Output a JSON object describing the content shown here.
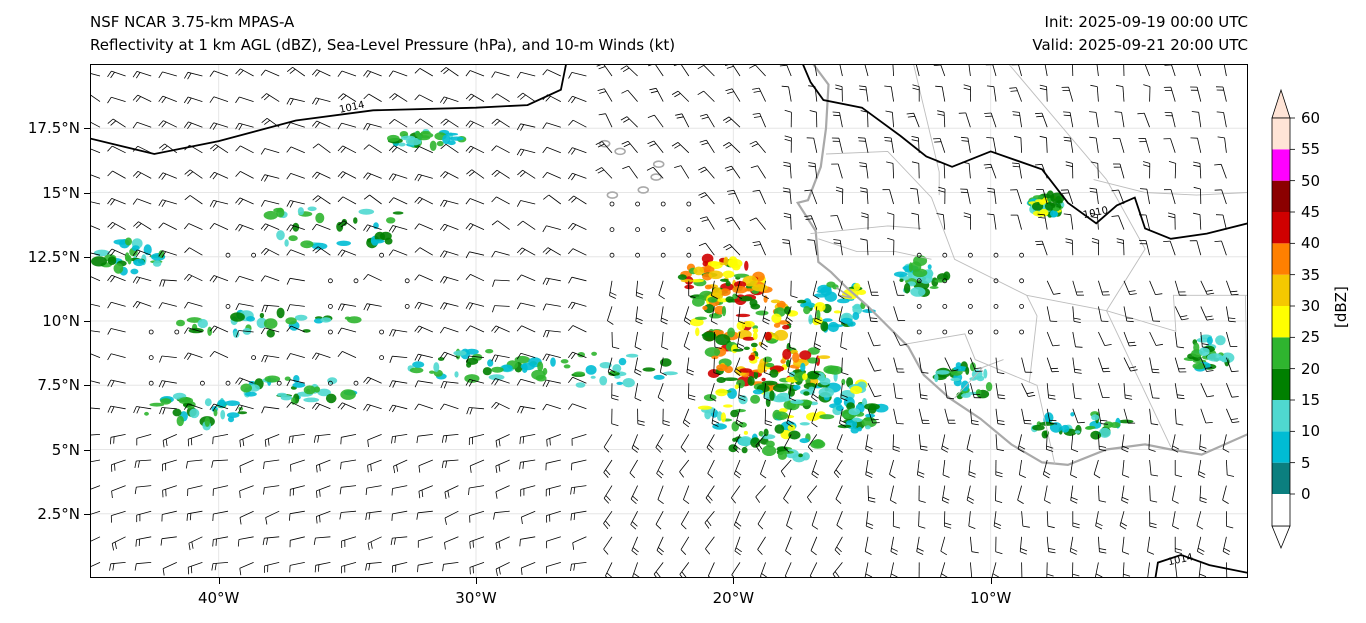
{
  "header": {
    "model_title": "NSF NCAR 3.75-km MPAS-A",
    "fields_subtitle": "Reflectivity at 1 km AGL (dBZ), Sea-Level Pressure (hPa), and 10-m Winds (kt)",
    "init_time": "Init: 2025-09-19 00:00 UTC",
    "valid_time": "Valid: 2025-09-21 20:00 UTC"
  },
  "map": {
    "extent_lon": [
      -45,
      0
    ],
    "extent_lat": [
      0,
      20
    ],
    "y_ticks": [
      {
        "label": "17.5°N",
        "lat": 17.5
      },
      {
        "label": "15°N",
        "lat": 15
      },
      {
        "label": "12.5°N",
        "lat": 12.5
      },
      {
        "label": "10°N",
        "lat": 10
      },
      {
        "label": "7.5°N",
        "lat": 7.5
      },
      {
        "label": "5°N",
        "lat": 5
      },
      {
        "label": "2.5°N",
        "lat": 2.5
      }
    ],
    "x_ticks": [
      {
        "label": "40°W",
        "lon": -40
      },
      {
        "label": "30°W",
        "lon": -30
      },
      {
        "label": "20°W",
        "lon": -20
      },
      {
        "label": "10°W",
        "lon": -10
      }
    ],
    "isobar_labels": [
      {
        "text": "1014",
        "lon": -34.8,
        "lat": 18.2
      },
      {
        "text": "1010",
        "lon": -5.9,
        "lat": 14.1
      },
      {
        "text": "1014",
        "lon": -2.6,
        "lat": 0.6
      }
    ],
    "colors": {
      "isobar": "#000000",
      "coastline": "#a9a9a9",
      "border": "#bdbdbd",
      "gridline": "#e6e6e6",
      "barb": "#000000"
    }
  },
  "colorbar": {
    "unit": "[dBZ]",
    "levels": [
      "0",
      "5",
      "10",
      "15",
      "20",
      "25",
      "30",
      "35",
      "40",
      "45",
      "50",
      "55",
      "60"
    ],
    "colors": [
      "#ffffff",
      "#0b7f7f",
      "#00bcd4",
      "#4fd8d0",
      "#008000",
      "#2fb52f",
      "#ffff00",
      "#f5c800",
      "#ff8000",
      "#d00000",
      "#8b0000",
      "#ff00ff",
      "#ffe4d6"
    ]
  }
}
